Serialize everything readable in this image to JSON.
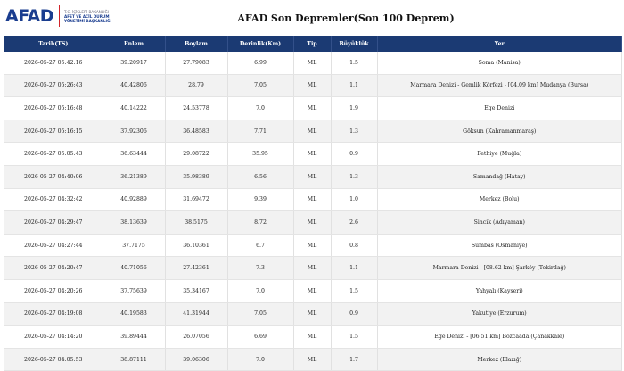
{
  "logo": {
    "text_blue": "AFAD",
    "sub_line1": "T.C. İÇİŞLERİ BAKANLIĞI",
    "sub_line2": "AFET VE ACİL DURUM",
    "sub_line3": "YÖNETİMİ BAŞKANLIĞI"
  },
  "page_title": "AFAD Son Depremler(Son 100 Deprem)",
  "table": {
    "headers": [
      "Tarih(TS)",
      "Enlem",
      "Boylam",
      "Derinlik(Km)",
      "Tip",
      "Büyüklük",
      "Yer"
    ],
    "rows": [
      [
        "2026-05-27 05:42:16",
        "39.20917",
        "27.79083",
        "6.99",
        "ML",
        "1.5",
        "Soma (Manisa)"
      ],
      [
        "2026-05-27 05:26:43",
        "40.42806",
        "28.79",
        "7.05",
        "ML",
        "1.1",
        "Marmara Denizi - Gemlik Körfezi - [04.09 km] Mudanya (Bursa)"
      ],
      [
        "2026-05-27 05:16:48",
        "40.14222",
        "24.53778",
        "7.0",
        "ML",
        "1.9",
        "Ege Denizi"
      ],
      [
        "2026-05-27 05:16:15",
        "37.92306",
        "36.48583",
        "7.71",
        "ML",
        "1.3",
        "Göksun (Kahramanmaraş)"
      ],
      [
        "2026-05-27 05:05:43",
        "36.63444",
        "29.08722",
        "35.95",
        "ML",
        "0.9",
        "Fethiye (Muğla)"
      ],
      [
        "2026-05-27 04:40:06",
        "36.21389",
        "35.98389",
        "6.56",
        "ML",
        "1.3",
        "Samandağ (Hatay)"
      ],
      [
        "2026-05-27 04:32:42",
        "40.92889",
        "31.69472",
        "9.39",
        "ML",
        "1.0",
        "Merkez (Bolu)"
      ],
      [
        "2026-05-27 04:29:47",
        "38.13639",
        "38.5175",
        "8.72",
        "ML",
        "2.6",
        "Sincik (Adıyaman)"
      ],
      [
        "2026-05-27 04:27:44",
        "37.7175",
        "36.10361",
        "6.7",
        "ML",
        "0.8",
        "Sumbas (Osmaniye)"
      ],
      [
        "2026-05-27 04:20:47",
        "40.71056",
        "27.42361",
        "7.3",
        "ML",
        "1.1",
        "Marmara Denizi - [08.62 km] Şarköy (Tekirdağ)"
      ],
      [
        "2026-05-27 04:20:26",
        "37.75639",
        "35.34167",
        "7.0",
        "ML",
        "1.5",
        "Yahyalı (Kayseri)"
      ],
      [
        "2026-05-27 04:19:08",
        "40.19583",
        "41.31944",
        "7.05",
        "ML",
        "0.9",
        "Yakutiye (Erzurum)"
      ],
      [
        "2026-05-27 04:14:20",
        "39.89444",
        "26.07056",
        "6.69",
        "ML",
        "1.5",
        "Ege Denizi - [06.51 km] Bozcaada (Çanakkale)"
      ],
      [
        "2026-05-27 04:05:53",
        "38.87111",
        "39.06306",
        "7.0",
        "ML",
        "1.7",
        "Merkez (Elazığ)"
      ]
    ]
  }
}
